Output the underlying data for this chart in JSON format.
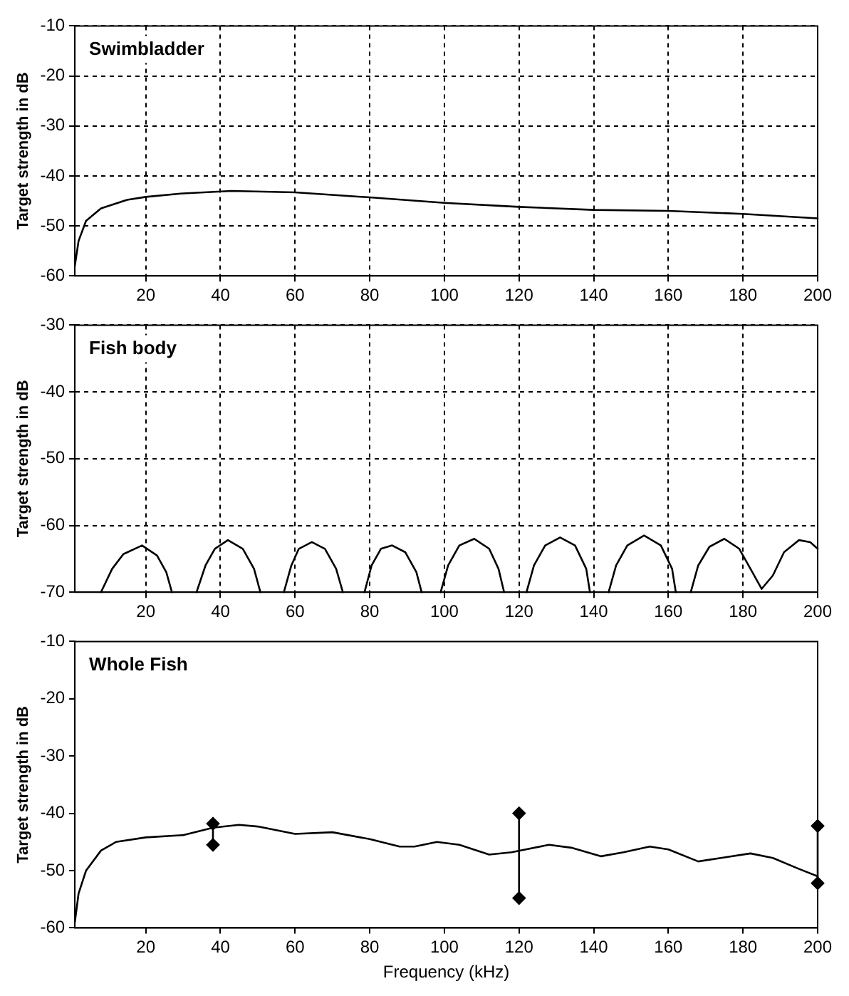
{
  "chart_data": [
    {
      "type": "line",
      "title": "Swimbladder",
      "ylabel": "Target strength in dB",
      "xlim": [
        1,
        200
      ],
      "xticks": [
        20,
        40,
        60,
        80,
        100,
        120,
        140,
        160,
        180,
        200
      ],
      "ylim": [
        -60,
        -10
      ],
      "yticks": [
        -60,
        -50,
        -40,
        -30,
        -20,
        -10
      ],
      "grid": true,
      "marker": "none",
      "line_style": "solid",
      "series": [
        {
          "color": "#000000",
          "x": [
            1,
            2,
            4,
            8,
            15,
            20,
            30,
            43,
            60,
            80,
            100,
            120,
            140,
            160,
            180,
            200
          ],
          "values": [
            -58,
            -53,
            -49,
            -46.5,
            -44.8,
            -44.2,
            -43.5,
            -43,
            -43.3,
            -44.3,
            -45.4,
            -46.2,
            -46.8,
            -47,
            -47.6,
            -48.5
          ]
        }
      ]
    },
    {
      "type": "line",
      "title": "Fish body",
      "ylabel": "Target strength in dB",
      "xlim": [
        1,
        200
      ],
      "xticks": [
        20,
        40,
        60,
        80,
        100,
        120,
        140,
        160,
        180,
        200
      ],
      "ylim": [
        -70,
        -30
      ],
      "yticks": [
        -70,
        -60,
        -50,
        -40,
        -30
      ],
      "grid": true,
      "marker": "none",
      "line_style": "solid",
      "series": [
        {
          "color": "#000000",
          "x": [
            8,
            11,
            14,
            19,
            23,
            25.5,
            27,
            30,
            33.6,
            36,
            38.5,
            42,
            46,
            49,
            50.7,
            54,
            57,
            59,
            61,
            64.5,
            68,
            71,
            72.8,
            75,
            78.6,
            80.5,
            83,
            86,
            89.5,
            92.5,
            93.9,
            96,
            99,
            101,
            104,
            108,
            112,
            114.5,
            116,
            119,
            122,
            124,
            127,
            131,
            135,
            138,
            139,
            141,
            144,
            146,
            149,
            153.5,
            158,
            161,
            162,
            164,
            166,
            168,
            171,
            175,
            179,
            182,
            185,
            188,
            191,
            195,
            198,
            200
          ],
          "values": [
            -70,
            -66.5,
            -64.3,
            -63,
            -64.5,
            -67,
            -70,
            null,
            -70,
            -66,
            -63.5,
            -62.2,
            -63.5,
            -66.5,
            -70,
            null,
            -70,
            -66,
            -63.5,
            -62.5,
            -63.5,
            -66.5,
            -70,
            null,
            -70,
            -66,
            -63.5,
            -63,
            -64,
            -67,
            -70,
            null,
            -70,
            -66,
            -63,
            -62,
            -63.5,
            -66.5,
            -70,
            null,
            -70,
            -66,
            -63,
            -61.8,
            -63,
            -66.5,
            -70,
            null,
            -70,
            -66,
            -63,
            -61.5,
            -63,
            -66.5,
            -70,
            null,
            -70,
            -66,
            -63.2,
            -62,
            -63.5,
            -66.5,
            -69.5,
            -67.5,
            -64,
            -62.2,
            -62.5,
            -63.5
          ]
        }
      ]
    },
    {
      "type": "line",
      "title": "Whole Fish",
      "xlabel": "Frequency (kHz)",
      "ylabel": "Target strength in dB",
      "xlim": [
        1,
        200
      ],
      "xticks": [
        20,
        40,
        60,
        80,
        100,
        120,
        140,
        160,
        180,
        200
      ],
      "ylim": [
        -60,
        -10
      ],
      "yticks": [
        -60,
        -50,
        -40,
        -30,
        -20,
        -10
      ],
      "grid": false,
      "marker": "none",
      "line_style": "solid",
      "series": [
        {
          "color": "#000000",
          "x": [
            1,
            2,
            4,
            8,
            12,
            20,
            30,
            38,
            45,
            50,
            60,
            70,
            80,
            88,
            92,
            98,
            104,
            112,
            118,
            128,
            134,
            142,
            148,
            155,
            160,
            168,
            175,
            182,
            188,
            195,
            200
          ],
          "values": [
            -59,
            -54,
            -50,
            -46.5,
            -45,
            -44.2,
            -43.8,
            -42.5,
            -42,
            -42.3,
            -43.6,
            -43.3,
            -44.5,
            -45.8,
            -45.8,
            -45,
            -45.5,
            -47.2,
            -46.8,
            -45.5,
            -46,
            -47.5,
            -46.8,
            -45.8,
            -46.3,
            -48.4,
            -47.7,
            -47,
            -47.8,
            -49.7,
            -51
          ]
        },
        {
          "color": "#000000",
          "marker": "diamond",
          "x": [
            38,
            38
          ],
          "values": [
            -41.8,
            -45.5
          ]
        },
        {
          "color": "#000000",
          "marker": "diamond",
          "x": [
            120,
            120
          ],
          "values": [
            -40,
            -54.8
          ]
        },
        {
          "color": "#000000",
          "marker": "diamond",
          "x": [
            200,
            200
          ],
          "values": [
            -42.2,
            -52.2
          ]
        }
      ]
    }
  ]
}
